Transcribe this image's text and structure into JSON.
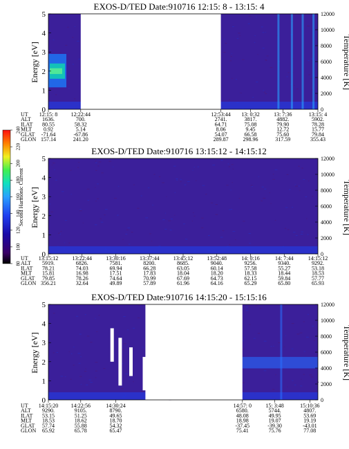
{
  "chart_data": [
    {
      "type": "heatmap",
      "title": "EXOS-D/TED   Date:910716  12:15: 8 - 13:15: 4",
      "ylabel": "Energy [eV]",
      "ylabel_right": "Temperature [K]",
      "ylim": [
        0,
        5
      ],
      "yticks": [
        "0",
        "1",
        "2",
        "3",
        "4",
        "5"
      ],
      "right_ylim": [
        0,
        12000
      ],
      "right_ticks": [
        "0",
        "2000",
        "4000",
        "6000",
        "8000",
        "10000",
        "12000"
      ],
      "data_gap_fraction": [
        0.12,
        0.64
      ],
      "table": {
        "row_labels": [
          "UT",
          "ALT",
          "ILAT",
          "MLT",
          "GLAT",
          "GLON"
        ],
        "columns": [
          [
            "12:15: 8",
            "1636.",
            "80.55",
            "0.92",
            "-71.64",
            "157.14"
          ],
          [
            "12:22:44",
            "700.",
            "58.32",
            "5.14",
            "-67.86",
            "241.20"
          ],
          [
            "12:53:44",
            "2741.",
            "64.71",
            "8.06",
            "54.07",
            "289.87"
          ],
          [
            "13: 0:32",
            "3817.",
            "75.08",
            "9.45",
            "66.58",
            "298.96"
          ],
          [
            "13: 7:36",
            "4882.",
            "79.90",
            "12.72",
            "75.60",
            "317.59"
          ],
          [
            "13:15: 4",
            "5902.",
            "78.28",
            "15.77",
            "79.84",
            "355.43"
          ]
        ]
      }
    },
    {
      "type": "heatmap",
      "title": "EXOS-D/TED   Date:910716  13:15:12 - 14:15:12",
      "ylabel": "Energy [eV]",
      "ylabel_right": "Temperature [K]",
      "ylim": [
        0,
        5
      ],
      "yticks": [
        "0",
        "1",
        "2",
        "3",
        "4",
        "5"
      ],
      "right_ylim": [
        0,
        12000
      ],
      "right_ticks": [
        "0",
        "2000",
        "4000",
        "6000",
        "8000",
        "10000",
        "12000"
      ],
      "table": {
        "row_labels": [
          "UT",
          "ALT",
          "ILAT",
          "MLT",
          "GLAT",
          "GLON"
        ],
        "columns": [
          [
            "13:15:12",
            "5919.",
            "78.21",
            "15.81",
            "79.85",
            "356.21"
          ],
          [
            "13:22:44",
            "6826.",
            "74.03",
            "16.98",
            "78.26",
            "32.64"
          ],
          [
            "13:30:16",
            "7581.",
            "69.94",
            "17.51",
            "74.64",
            "49.89"
          ],
          [
            "13:37:44",
            "8200.",
            "66.28",
            "17.83",
            "70.99",
            "57.89"
          ],
          [
            "13:45:12",
            "8685.",
            "63.05",
            "18.04",
            "67.69",
            "61.96"
          ],
          [
            "13:52:48",
            "9040.",
            "60.14",
            "18.20",
            "64.73",
            "64.16"
          ],
          [
            "14: 0:16",
            "9256.",
            "57.58",
            "18.33",
            "62.15",
            "65.29"
          ],
          [
            "14: 7:44",
            "9340.",
            "55.27",
            "18.44",
            "59.84",
            "65.80"
          ],
          [
            "14:15:12",
            "9292.",
            "53.18",
            "18.53",
            "57.77",
            "65.93"
          ]
        ]
      }
    },
    {
      "type": "heatmap",
      "title": "EXOS-D/TED   Date:910716  14:15:20 - 15:15:16",
      "ylabel": "Energy [eV]",
      "ylabel_right": "Temperature [K]",
      "ylim": [
        0,
        5
      ],
      "yticks": [
        "0",
        "1",
        "2",
        "3",
        "4",
        "5"
      ],
      "right_ylim": [
        0,
        12000
      ],
      "right_ticks": [
        "0",
        "2000",
        "4000",
        "6000",
        "8000",
        "10000",
        "12000"
      ],
      "data_gap_fraction": [
        0.36,
        0.72
      ],
      "table": {
        "row_labels": [
          "UT",
          "ALT",
          "ILAT",
          "MLT",
          "GLAT",
          "GLON"
        ],
        "columns": [
          [
            "14:15:20",
            "9290.",
            "53.15",
            "18.53",
            "57.74",
            "65.92"
          ],
          [
            "14:22:56",
            "9105.",
            "51.25",
            "18.62",
            "55.88",
            "65.78"
          ],
          [
            "14:30:24",
            "8790.",
            "49.65",
            "18.70",
            "54.32",
            "65.47"
          ],
          [
            "14:57: 0",
            "6580.",
            "48.08",
            "18.98",
            "-37.45",
            "75.41"
          ],
          [
            "15: 3:48",
            "5744.",
            "49.95",
            "19.07",
            "-39.30",
            "75.76"
          ],
          [
            "15:10:36",
            "4807.",
            "53.69",
            "19.19",
            "-43.01",
            "77.08"
          ]
        ]
      }
    }
  ],
  "colorbar": {
    "label": "Second Harmonic Current",
    "ticks": [
      "80",
      "100",
      "120",
      "140",
      "160",
      "180",
      "200",
      "220",
      "240"
    ],
    "colors": [
      "#000000",
      "#3a0066",
      "#1a0aa8",
      "#1f3ff0",
      "#2aa0ff",
      "#10e0c0",
      "#40f050",
      "#f0f020",
      "#ff8000",
      "#ff1010"
    ]
  }
}
